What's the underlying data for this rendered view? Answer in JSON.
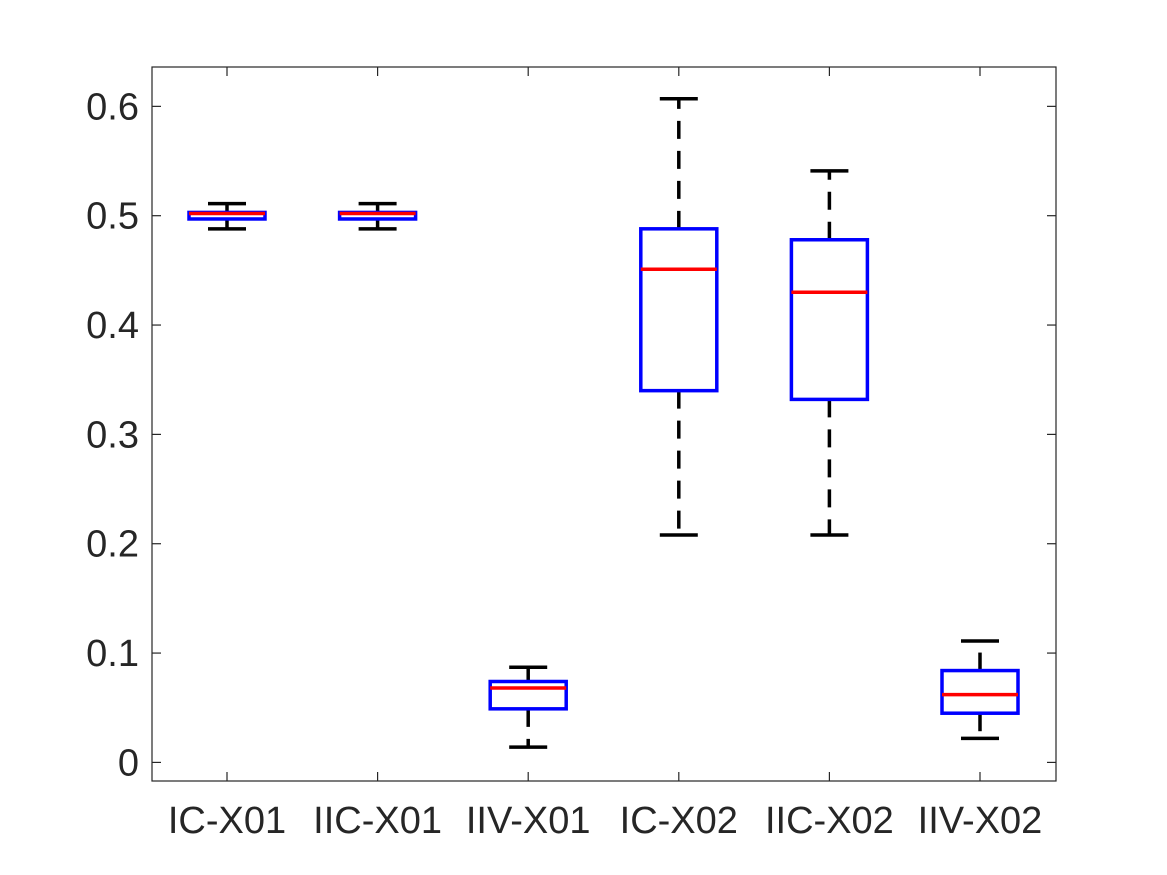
{
  "chart_data": {
    "type": "box",
    "title": "",
    "xlabel": "",
    "ylabel": "",
    "categories": [
      "IC-X01",
      "IIC-X01",
      "IIV-X01",
      "IC-X02",
      "IIC-X02",
      "IIV-X02"
    ],
    "ylim": [
      -0.017,
      0.636
    ],
    "yticks": [
      0,
      0.1,
      0.2,
      0.3,
      0.4,
      0.5,
      0.6
    ],
    "ytick_labels": [
      "0",
      "0.1",
      "0.2",
      "0.3",
      "0.4",
      "0.5",
      "0.6"
    ],
    "grid": false,
    "boxes": [
      {
        "category": "IC-X01",
        "whisker_low": 0.488,
        "q1": 0.497,
        "median": 0.502,
        "q3": 0.503,
        "whisker_high": 0.511
      },
      {
        "category": "IIC-X01",
        "whisker_low": 0.488,
        "q1": 0.497,
        "median": 0.502,
        "q3": 0.503,
        "whisker_high": 0.511
      },
      {
        "category": "IIV-X01",
        "whisker_low": 0.014,
        "q1": 0.049,
        "median": 0.068,
        "q3": 0.074,
        "whisker_high": 0.087
      },
      {
        "category": "IC-X02",
        "whisker_low": 0.208,
        "q1": 0.34,
        "median": 0.451,
        "q3": 0.488,
        "whisker_high": 0.607
      },
      {
        "category": "IIC-X02",
        "whisker_low": 0.208,
        "q1": 0.332,
        "median": 0.43,
        "q3": 0.478,
        "whisker_high": 0.541
      },
      {
        "category": "IIV-X02",
        "whisker_low": 0.022,
        "q1": 0.045,
        "median": 0.062,
        "q3": 0.084,
        "whisker_high": 0.111
      }
    ],
    "colors": {
      "box": "#0000ff",
      "median": "#ff0000",
      "whisker": "#000000",
      "axes": "#262626"
    }
  }
}
